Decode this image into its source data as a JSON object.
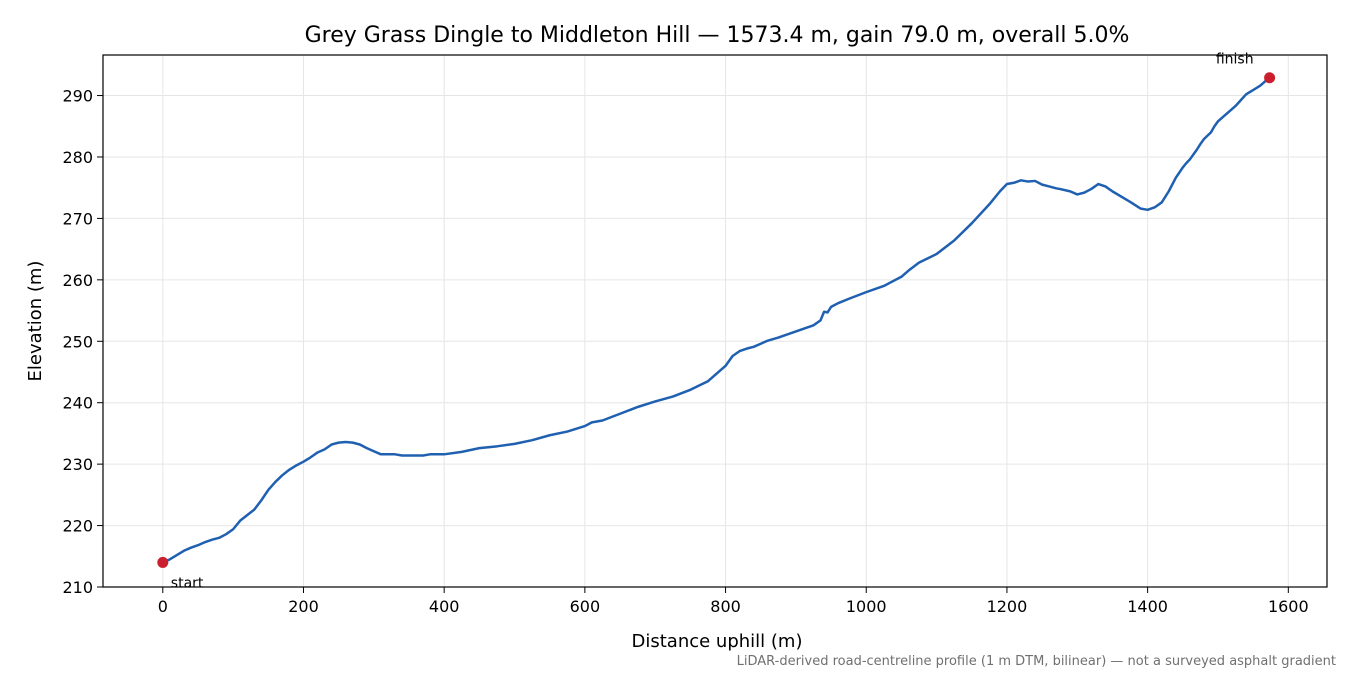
{
  "chart_data": {
    "type": "line",
    "title": "Grey Grass Dingle to Middleton Hill — 1573.4 m, gain 79.0 m, overall 5.0%",
    "xlabel": "Distance uphill (m)",
    "ylabel": "Elevation (m)",
    "xlim": [
      -85,
      1655
    ],
    "ylim": [
      210,
      296.6
    ],
    "xticks": [
      0,
      200,
      400,
      600,
      800,
      1000,
      1200,
      1400,
      1600
    ],
    "yticks": [
      210,
      220,
      230,
      240,
      250,
      260,
      270,
      280,
      290
    ],
    "grid": true,
    "line_color": "#2060b0",
    "marker_color": "#cc1f2d",
    "series": [
      {
        "x": [
          0,
          10,
          20,
          30,
          40,
          50,
          60,
          70,
          80,
          90,
          100,
          110,
          120,
          130,
          140,
          150,
          160,
          170,
          180,
          190,
          200,
          210,
          220,
          230,
          240,
          250,
          260,
          270,
          280,
          290,
          300,
          310,
          320,
          330,
          340,
          350,
          360,
          370,
          380,
          390,
          400,
          425,
          450,
          475,
          500,
          525,
          550,
          575,
          600,
          610,
          620,
          625,
          650,
          675,
          700,
          725,
          750,
          775,
          800,
          810,
          820,
          830,
          840,
          850,
          860,
          875,
          900,
          925,
          935,
          940,
          945,
          950,
          960,
          975,
          1000,
          1025,
          1050,
          1060,
          1075,
          1100,
          1125,
          1150,
          1175,
          1190,
          1200,
          1210,
          1220,
          1230,
          1240,
          1250,
          1260,
          1270,
          1275,
          1290,
          1300,
          1310,
          1320,
          1330,
          1340,
          1350,
          1375,
          1390,
          1400,
          1410,
          1420,
          1430,
          1440,
          1450,
          1455,
          1460,
          1470,
          1475,
          1480,
          1490,
          1495,
          1500,
          1510,
          1525,
          1540,
          1550,
          1560,
          1570,
          1573.4
        ],
        "y": [
          214,
          214.5,
          215.2,
          215.9,
          216.4,
          216.8,
          217.3,
          217.7,
          218.0,
          218.6,
          219.4,
          220.8,
          221.7,
          222.6,
          224.1,
          225.8,
          227.1,
          228.2,
          229.1,
          229.8,
          230.4,
          231.1,
          231.9,
          232.4,
          233.2,
          233.5,
          233.6,
          233.5,
          233.2,
          232.6,
          232.1,
          231.6,
          231.6,
          231.6,
          231.4,
          231.4,
          231.4,
          231.4,
          231.6,
          231.6,
          231.6,
          232.0,
          232.6,
          232.9,
          233.3,
          233.9,
          234.7,
          235.3,
          236.2,
          236.8,
          237.0,
          237.1,
          238.2,
          239.3,
          240.2,
          241.0,
          242.1,
          243.5,
          246.0,
          247.6,
          248.4,
          248.8,
          249.1,
          249.6,
          250.1,
          250.6,
          251.6,
          252.6,
          253.4,
          254.8,
          254.7,
          255.6,
          256.2,
          256.9,
          258.0,
          259.0,
          260.5,
          261.5,
          262.8,
          264.2,
          266.4,
          269.2,
          272.3,
          274.4,
          275.6,
          275.8,
          276.2,
          276.0,
          276.1,
          275.5,
          275.2,
          274.9,
          274.8,
          274.4,
          273.9,
          274.2,
          274.8,
          275.6,
          275.2,
          274.4,
          272.7,
          271.6,
          271.4,
          271.8,
          272.6,
          274.4,
          276.6,
          278.3,
          279.0,
          279.6,
          281.2,
          282.1,
          282.9,
          284.0,
          285.0,
          285.8,
          286.8,
          288.3,
          290.2,
          290.9,
          291.6,
          292.6,
          292.9
        ]
      }
    ],
    "points": [
      {
        "label": "start",
        "x": 0,
        "y": 214
      },
      {
        "label": "finish",
        "x": 1573.4,
        "y": 292.9
      }
    ],
    "footnote": "LiDAR-derived road-centreline profile (1 m DTM, bilinear) — not a surveyed asphalt gradient"
  }
}
